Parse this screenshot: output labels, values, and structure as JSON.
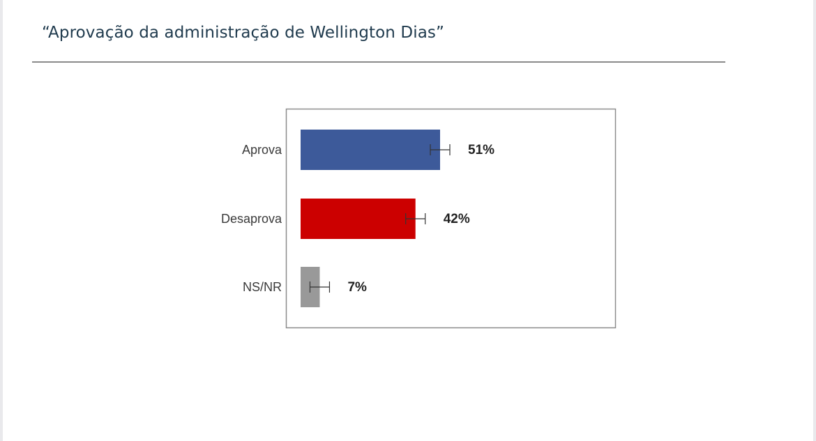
{
  "slide": {
    "title": "“Aprovação da administração de Wellington Dias”"
  },
  "chart_data": {
    "type": "bar",
    "orientation": "horizontal",
    "categories": [
      "Aprova",
      "Desaprova",
      "NS/NR"
    ],
    "values": [
      51,
      42,
      7
    ],
    "data_labels": [
      "51%",
      "42%",
      "7%"
    ],
    "error_bars": true,
    "colors": [
      "#3d5a9a",
      "#cc0000",
      "#999999"
    ],
    "xlim": [
      0,
      100
    ],
    "grid": false,
    "legend": "none"
  }
}
